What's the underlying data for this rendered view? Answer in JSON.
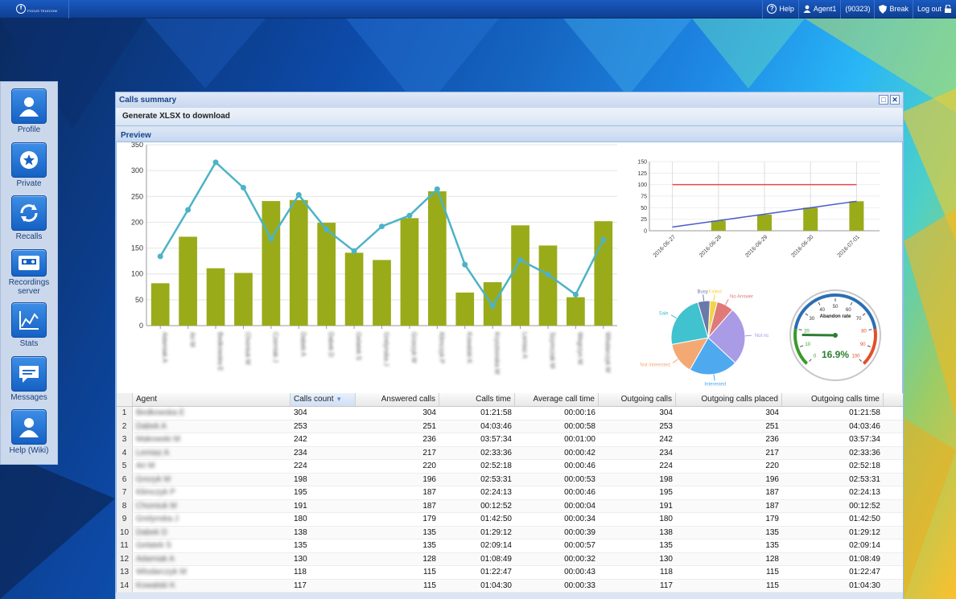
{
  "topbar": {
    "logo_text": "FOCUS TELECOM",
    "help_label": "Help",
    "agent_label": "Agent1",
    "agent_id": "(90323)",
    "break_label": "Break",
    "logout_label": "Log out"
  },
  "sidebar": {
    "items": [
      {
        "label": "Profile",
        "icon": "user-icon"
      },
      {
        "label": "Private",
        "icon": "star-icon"
      },
      {
        "label": "Recalls",
        "icon": "recall-icon"
      },
      {
        "label": "Recordings server",
        "icon": "cassette-icon"
      },
      {
        "label": "Stats",
        "icon": "chart-icon"
      },
      {
        "label": "Messages",
        "icon": "message-icon"
      },
      {
        "label": "Help (Wiki)",
        "icon": "user-icon"
      }
    ]
  },
  "window": {
    "title": "Calls summary",
    "generate_label": "Generate XLSX to download",
    "preview_label": "Preview"
  },
  "colors": {
    "bar": "#9aab1a",
    "line": "#4db3c6",
    "trend": "#4a5ac8",
    "threshold": "#e34a4a"
  },
  "chart_data": [
    {
      "type": "bar",
      "title": "",
      "ylim": [
        0,
        350
      ],
      "yticks": [
        0,
        50,
        100,
        150,
        200,
        250,
        300,
        350
      ],
      "categories": [
        "Adamiak A",
        "Ari M",
        "Bedkowska E",
        "Chomiuk M",
        "Czerniak J",
        "Dabek A",
        "Dabek D",
        "Gelatek S",
        "Grelynska J",
        "Grzezyk M",
        "Klimczyk P",
        "Kowalski K",
        "Krysztonska M",
        "Lemiaz A",
        "Szymczak M",
        "Wegrzyn M",
        "Wlodarczyk M"
      ],
      "series": [
        {
          "type": "bar",
          "values": [
            82,
            172,
            111,
            102,
            241,
            243,
            199,
            141,
            127,
            208,
            260,
            64,
            84,
            194,
            155,
            55,
            202
          ]
        },
        {
          "type": "line",
          "values": [
            134,
            224,
            316,
            267,
            168,
            253,
            186,
            144,
            192,
            213,
            264,
            118,
            38,
            127,
            99,
            60,
            166
          ]
        }
      ]
    },
    {
      "type": "bar",
      "ylim": [
        0,
        150
      ],
      "yticks": [
        0,
        25,
        50,
        75,
        100,
        125,
        150
      ],
      "categories": [
        "2016-06-27",
        "2016-06-28",
        "2016-06-29",
        "2016-06-30",
        "2016-07-01"
      ],
      "series": [
        {
          "type": "bar",
          "values": [
            0,
            22,
            35,
            50,
            64
          ]
        },
        {
          "type": "line",
          "values": [
            100,
            100,
            100,
            100,
            100
          ]
        },
        {
          "type": "line",
          "values": [
            8,
            22,
            36,
            50,
            64
          ]
        }
      ]
    },
    {
      "type": "pie",
      "labels": [
        "Failed",
        "No Answer",
        "Not now",
        "Interested",
        "Not interested",
        "Sale",
        "Busy"
      ],
      "values": [
        3,
        7,
        24,
        20,
        13,
        22,
        5
      ],
      "colors": [
        "#f2d44a",
        "#e07a7a",
        "#a99be6",
        "#4fa9ef",
        "#f4a974",
        "#40c2cf",
        "#6b79a8"
      ]
    },
    {
      "type": "gauge",
      "title": "Abandon rate",
      "min": 0,
      "max": 100,
      "ticks": [
        "0",
        "10",
        "20",
        "30",
        "40",
        "50",
        "60",
        "70",
        "80",
        "90",
        "100"
      ],
      "value": 16.9,
      "value_label": "16.9%"
    }
  ],
  "table": {
    "columns": [
      "Agent",
      "Calls count",
      "Answered calls",
      "Calls time",
      "Average call time",
      "Outgoing calls",
      "Outgoing calls placed",
      "Outgoing calls time"
    ],
    "rows": [
      [
        "1",
        "Bedkowska E",
        "304",
        "304",
        "01:21:58",
        "00:00:16",
        "304",
        "304",
        "01:21:58"
      ],
      [
        "2",
        "Dabek A",
        "253",
        "251",
        "04:03:46",
        "00:00:58",
        "253",
        "251",
        "04:03:46"
      ],
      [
        "3",
        "Makowski M",
        "242",
        "236",
        "03:57:34",
        "00:01:00",
        "242",
        "236",
        "03:57:34"
      ],
      [
        "4",
        "Lemiaz A",
        "234",
        "217",
        "02:33:36",
        "00:00:42",
        "234",
        "217",
        "02:33:36"
      ],
      [
        "5",
        "Ari M",
        "224",
        "220",
        "02:52:18",
        "00:00:46",
        "224",
        "220",
        "02:52:18"
      ],
      [
        "6",
        "Grezyk M",
        "198",
        "196",
        "02:53:31",
        "00:00:53",
        "198",
        "196",
        "02:53:31"
      ],
      [
        "7",
        "Klimczyk P",
        "195",
        "187",
        "02:24:13",
        "00:00:46",
        "195",
        "187",
        "02:24:13"
      ],
      [
        "8",
        "Chomiuk M",
        "191",
        "187",
        "00:12:52",
        "00:00:04",
        "191",
        "187",
        "00:12:52"
      ],
      [
        "9",
        "Grelynska J",
        "180",
        "179",
        "01:42:50",
        "00:00:34",
        "180",
        "179",
        "01:42:50"
      ],
      [
        "10",
        "Dabek D",
        "138",
        "135",
        "01:29:12",
        "00:00:39",
        "138",
        "135",
        "01:29:12"
      ],
      [
        "11",
        "Gelatek S",
        "135",
        "135",
        "02:09:14",
        "00:00:57",
        "135",
        "135",
        "02:09:14"
      ],
      [
        "12",
        "Adamiak A",
        "130",
        "128",
        "01:08:49",
        "00:00:32",
        "130",
        "128",
        "01:08:49"
      ],
      [
        "13",
        "Wlodarczyk M",
        "118",
        "115",
        "01:22:47",
        "00:00:43",
        "118",
        "115",
        "01:22:47"
      ],
      [
        "14",
        "Kowalski K",
        "117",
        "115",
        "01:04:30",
        "00:00:33",
        "117",
        "115",
        "01:04:30"
      ]
    ]
  }
}
